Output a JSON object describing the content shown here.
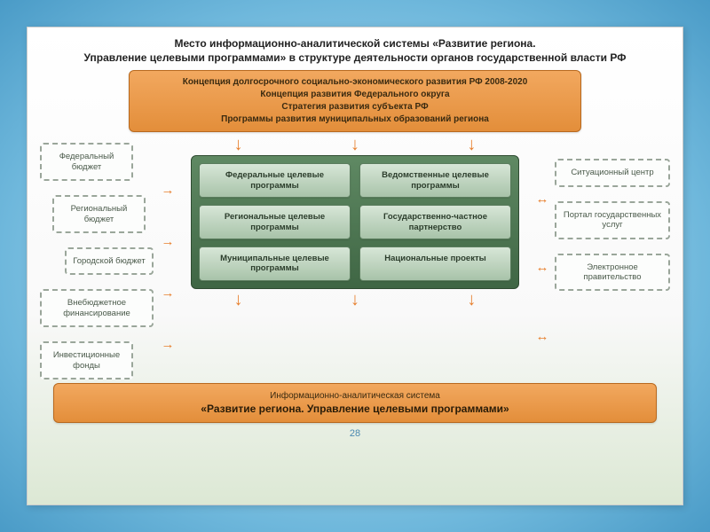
{
  "title_line1": "Место информационно-аналитической системы «Развитие региона.",
  "title_line2": "Управление целевыми программами» в структуре деятельности органов государственной власти РФ",
  "top_box": {
    "line1": "Концепция долгосрочного социально-экономического развития РФ 2008-2020",
    "line2": "Концепция развития Федерального округа",
    "line3": "Стратегия развития субъекта РФ",
    "line4": "Программы развития муниципальных образований региона"
  },
  "left": [
    "Федеральный бюджет",
    "Региональный бюджет",
    "Городской бюджет",
    "Внебюджетное финансирование",
    "Инвестиционные фонды"
  ],
  "center": [
    "Федеральные целевые программы",
    "Ведомственные целевые программы",
    "Региональные целевые программы",
    "Государственно-частное партнерство",
    "Муниципальные целевые программы",
    "Национальные проекты"
  ],
  "right": [
    "Ситуационный центр",
    "Портал государственных услуг",
    "Электронное правительство"
  ],
  "bottom": {
    "sub": "Информационно-аналитическая система",
    "main": "«Развитие региона. Управление целевыми программами»"
  },
  "page": "28",
  "colors": {
    "orange_grad_top": "#f2a85f",
    "orange_grad_bot": "#e38e3a",
    "orange_border": "#b8691f",
    "green_panel_top": "#5f8963",
    "green_panel_bot": "#3f6644",
    "green_cell_top": "#d7e6d7",
    "green_cell_bot": "#a8c3a9",
    "dashed_border": "#9aa69a",
    "arrow": "#e77f2d",
    "bg_outer_top": "#c8e6f5",
    "bg_outer_bot": "#4a9bc7"
  }
}
